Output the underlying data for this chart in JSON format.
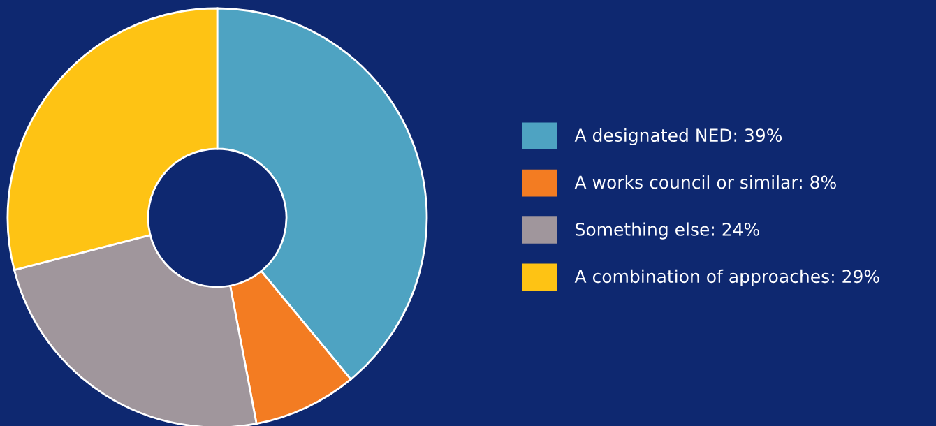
{
  "chart_data": {
    "type": "donut",
    "categories": [
      "A designated NED: 39%",
      "A works council or similar: 8%",
      "Something else: 24%",
      "A combination of approaches: 29%"
    ],
    "values": [
      39,
      8,
      24,
      29
    ],
    "colors": [
      "#4ea3c2",
      "#f37c22",
      "#a0969c",
      "#fec314"
    ],
    "legend": "right"
  }
}
